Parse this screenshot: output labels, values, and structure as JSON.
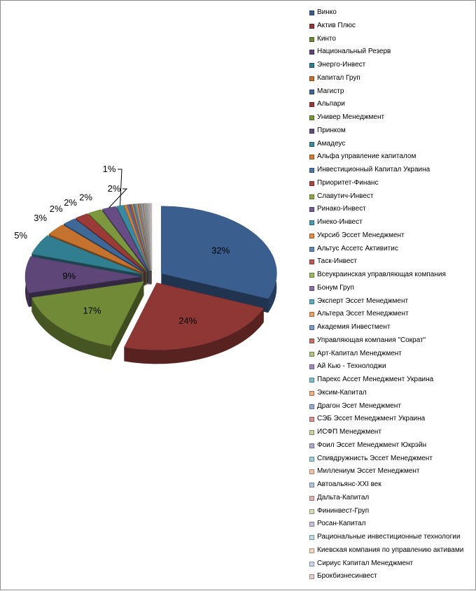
{
  "chart_data": {
    "type": "pie",
    "title": "",
    "style": "3d-exploded",
    "legend_position": "right",
    "slices": [
      {
        "name": "Винко",
        "value": 32,
        "label": "32%",
        "color": "#3A5F8F"
      },
      {
        "name": "Актив Плюс",
        "value": 24,
        "label": "24%",
        "color": "#8E3734"
      },
      {
        "name": "Кинто",
        "value": 17,
        "label": "17%",
        "color": "#718A38"
      },
      {
        "name": "Национальный Резерв",
        "value": 9,
        "label": "9%",
        "color": "#5E4678"
      },
      {
        "name": "Энерго-Инвест",
        "value": 5,
        "label": "5%",
        "color": "#327E91"
      },
      {
        "name": "Капитал Груп",
        "value": 3,
        "label": "3%",
        "color": "#C4722E"
      },
      {
        "name": "Магистр",
        "value": 2,
        "label": "2%",
        "color": "#3D6897"
      },
      {
        "name": "Альпари",
        "value": 2,
        "label": "2%",
        "color": "#9A3B38"
      },
      {
        "name": "Универ Менеджмент",
        "value": 2,
        "label": "2%",
        "color": "#7C973D"
      },
      {
        "name": "Принком",
        "value": 2,
        "label": "2%",
        "color": "#684D84"
      },
      {
        "name": "Амадеус",
        "value": 1,
        "label": "1%",
        "color": "#3A8BA0"
      },
      {
        "name": "Альфа управление капиталом",
        "value": 0.4,
        "label": "",
        "color": "#D67E33"
      },
      {
        "name": "Инвестиционный Капитал Украина",
        "value": 0.3,
        "label": "",
        "color": "#4A77AA"
      },
      {
        "name": "Приоритет-Финанс",
        "value": 0.3,
        "label": "",
        "color": "#AC4643"
      },
      {
        "name": "Славутич-Инвест",
        "value": 0.2,
        "label": "",
        "color": "#8BA94A"
      },
      {
        "name": "Ринако-Инвест",
        "value": 0.2,
        "label": "",
        "color": "#7A5C99"
      },
      {
        "name": "Инеко-Инвест",
        "value": 0.2,
        "label": "",
        "color": "#469CB2"
      },
      {
        "name": "Укрсиб Эссет Менеджмент",
        "value": 0.2,
        "label": "",
        "color": "#E68C40"
      },
      {
        "name": "Альтус Ассетс Активитис",
        "value": 0.1,
        "label": "",
        "color": "#6189BA"
      },
      {
        "name": "Таск-Инвест",
        "value": 0.1,
        "label": "",
        "color": "#BD5A57"
      },
      {
        "name": "Всеукраинская управляющая компания",
        "value": 0.1,
        "label": "",
        "color": "#9CBA5E"
      },
      {
        "name": "Бонум Груп",
        "value": 0.1,
        "label": "",
        "color": "#8B70AA"
      },
      {
        "name": "Эксперт Эссет Менеджмент",
        "value": 0.1,
        "label": "",
        "color": "#5AAEC3"
      },
      {
        "name": "Альтера Эссет Менеджмент",
        "value": 0.1,
        "label": "",
        "color": "#F0A060"
      },
      {
        "name": "Академия Инвестмент",
        "value": 0.1,
        "label": "",
        "color": "#7A9BC8"
      },
      {
        "name": "Управляющая компания \"Сократ\"",
        "value": 0.1,
        "label": "",
        "color": "#C8706D"
      },
      {
        "name": "Арт-Капитал Менеджмент",
        "value": 0.1,
        "label": "",
        "color": "#AFC77E"
      },
      {
        "name": "Ай Кью - Технолоджи",
        "value": 0.1,
        "label": "",
        "color": "#A08CBF"
      },
      {
        "name": "Парекс Ассет Менеджмент Украина",
        "value": 0.1,
        "label": "",
        "color": "#7BBFD0"
      },
      {
        "name": "Эксим-Капитал",
        "value": 0.05,
        "label": "",
        "color": "#F4B27F"
      },
      {
        "name": "Драгон Эсет Менеджмент",
        "value": 0.05,
        "label": "",
        "color": "#95AFD4"
      },
      {
        "name": "СЭБ Эссет Менеджмент Украина",
        "value": 0.05,
        "label": "",
        "color": "#D69593"
      },
      {
        "name": "ИСФП Менеджмент",
        "value": 0.05,
        "label": "",
        "color": "#C3D59E"
      },
      {
        "name": "Фоил Эссет Менеджмент Юкрэйн",
        "value": 0.05,
        "label": "",
        "color": "#B6A7CF"
      },
      {
        "name": "Спивдружнисть Эссет Менеджмент",
        "value": 0.05,
        "label": "",
        "color": "#9CCFDC"
      },
      {
        "name": "Миллениум Эссет Менеджмент",
        "value": 0.05,
        "label": "",
        "color": "#F7C7A2"
      },
      {
        "name": "Автоальянс-XXI век",
        "value": 0.05,
        "label": "",
        "color": "#B2C6E2"
      },
      {
        "name": "Дальта-Капитал",
        "value": 0.05,
        "label": "",
        "color": "#E1B4B3"
      },
      {
        "name": "Фининвест-Груп",
        "value": 0.05,
        "label": "",
        "color": "#D3E1BB"
      },
      {
        "name": "Росан-Капитал",
        "value": 0.05,
        "label": "",
        "color": "#CBC0DF"
      },
      {
        "name": "Рациональные инвестиционные технологии",
        "value": 0.05,
        "label": "",
        "color": "#BEDFE8"
      },
      {
        "name": "Киевская компания по управлению активами",
        "value": 0.05,
        "label": "",
        "color": "#F9D8C0"
      },
      {
        "name": "Сириус Кэпитал Менеджмент",
        "value": 0.05,
        "label": "",
        "color": "#CCD9EC"
      },
      {
        "name": "Брокбизнесинвест",
        "value": 0.05,
        "label": "",
        "color": "#EBCFCE"
      }
    ]
  }
}
